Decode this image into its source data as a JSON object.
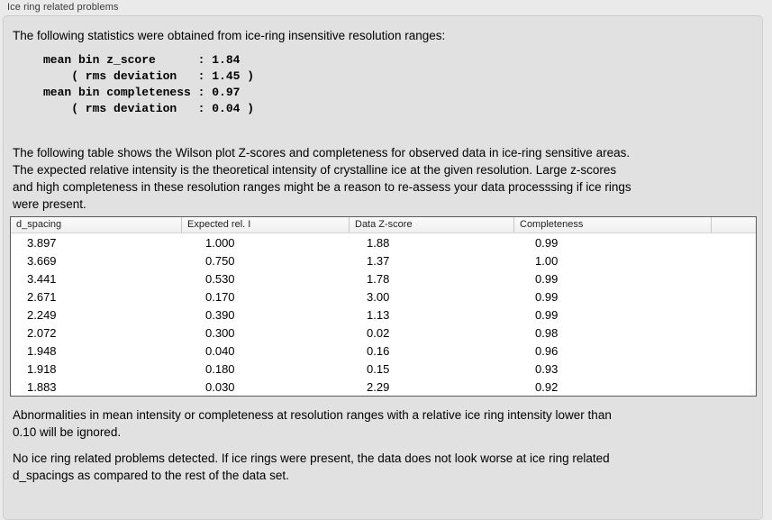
{
  "panel": {
    "title": "Ice ring related problems"
  },
  "stats": {
    "intro": "The following statistics were obtained from ice-ring insensitive resolution ranges:",
    "block": "mean bin z_score      : 1.84\n    ( rms deviation   : 1.45 )\nmean bin completeness : 0.97\n    ( rms deviation   : 0.04 )",
    "values": {
      "mean_bin_z_score": "1.84",
      "z_score_rms_deviation": "1.45",
      "mean_bin_completeness": "0.97",
      "completeness_rms_deviation": "0.04"
    }
  },
  "table_description": "The following table shows the Wilson plot Z-scores and completeness for observed data in ice-ring sensitive areas.\nThe expected relative intensity is the theoretical intensity of crystalline ice at the given resolution. Large z-scores\nand high completeness in these resolution ranges might be a reason to re-assess your data processsing if ice rings\nwere present.",
  "table": {
    "columns": [
      "d_spacing",
      "Expected rel. I",
      "Data Z-score",
      "Completeness"
    ],
    "rows": [
      [
        "3.897",
        "1.000",
        "1.88",
        "0.99"
      ],
      [
        "3.669",
        "0.750",
        "1.37",
        "1.00"
      ],
      [
        "3.441",
        "0.530",
        "1.78",
        "0.99"
      ],
      [
        "2.671",
        "0.170",
        "3.00",
        "0.99"
      ],
      [
        "2.249",
        "0.390",
        "1.13",
        "0.99"
      ],
      [
        "2.072",
        "0.300",
        "0.02",
        "0.98"
      ],
      [
        "1.948",
        "0.040",
        "0.16",
        "0.96"
      ],
      [
        "1.918",
        "0.180",
        "0.15",
        "0.93"
      ],
      [
        "1.883",
        "0.030",
        "2.29",
        "0.92"
      ]
    ]
  },
  "notes": {
    "ignore_threshold": "Abnormalities in mean intensity or completeness at resolution ranges with a relative ice ring intensity lower than\n0.10 will be ignored.",
    "conclusion": "No ice ring related problems detected. If ice rings were present, the data does not look worse at ice ring related\nd_spacings as compared to the rest of the data set."
  },
  "colors": {
    "outer_background": "#eaeaea",
    "panel_background": "#e1e1e1",
    "panel_border": "#cecece",
    "table_border": "#5a5a5a",
    "table_background": "#ffffff"
  }
}
